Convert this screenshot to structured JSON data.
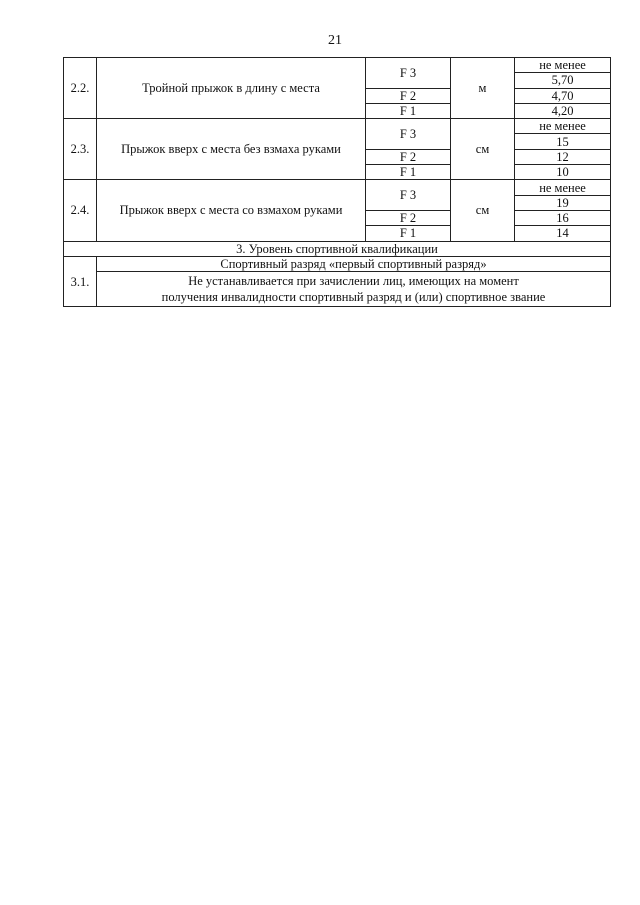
{
  "page_number": "21",
  "blocks": [
    {
      "num": "2.2.",
      "name": "Тройной прыжок в длину с места",
      "unit": "м",
      "header": "не менее",
      "rows": [
        {
          "level": "F 3",
          "value": "5,70"
        },
        {
          "level": "F 2",
          "value": "4,70"
        },
        {
          "level": "F 1",
          "value": "4,20"
        }
      ]
    },
    {
      "num": "2.3.",
      "name": "Прыжок вверх с места без взмаха руками",
      "unit": "см",
      "header": "не менее",
      "rows": [
        {
          "level": "F 3",
          "value": "15"
        },
        {
          "level": "F 2",
          "value": "12"
        },
        {
          "level": "F 1",
          "value": "10"
        }
      ]
    },
    {
      "num": "2.4.",
      "name": "Прыжок вверх с места со взмахом руками",
      "unit": "см",
      "header": "не менее",
      "rows": [
        {
          "level": "F 3",
          "value": "19"
        },
        {
          "level": "F 2",
          "value": "16"
        },
        {
          "level": "F 1",
          "value": "14"
        }
      ]
    }
  ],
  "section3": {
    "title": "3. Уровень спортивной квалификации",
    "num": "3.1.",
    "rank": "Спортивный разряд «первый спортивный разряд»",
    "note_line1": "Не устанавливается при зачислении лиц, имеющих на момент",
    "note_line2": "получения инвалидности спортивный разряд и (или) спортивное звание"
  }
}
